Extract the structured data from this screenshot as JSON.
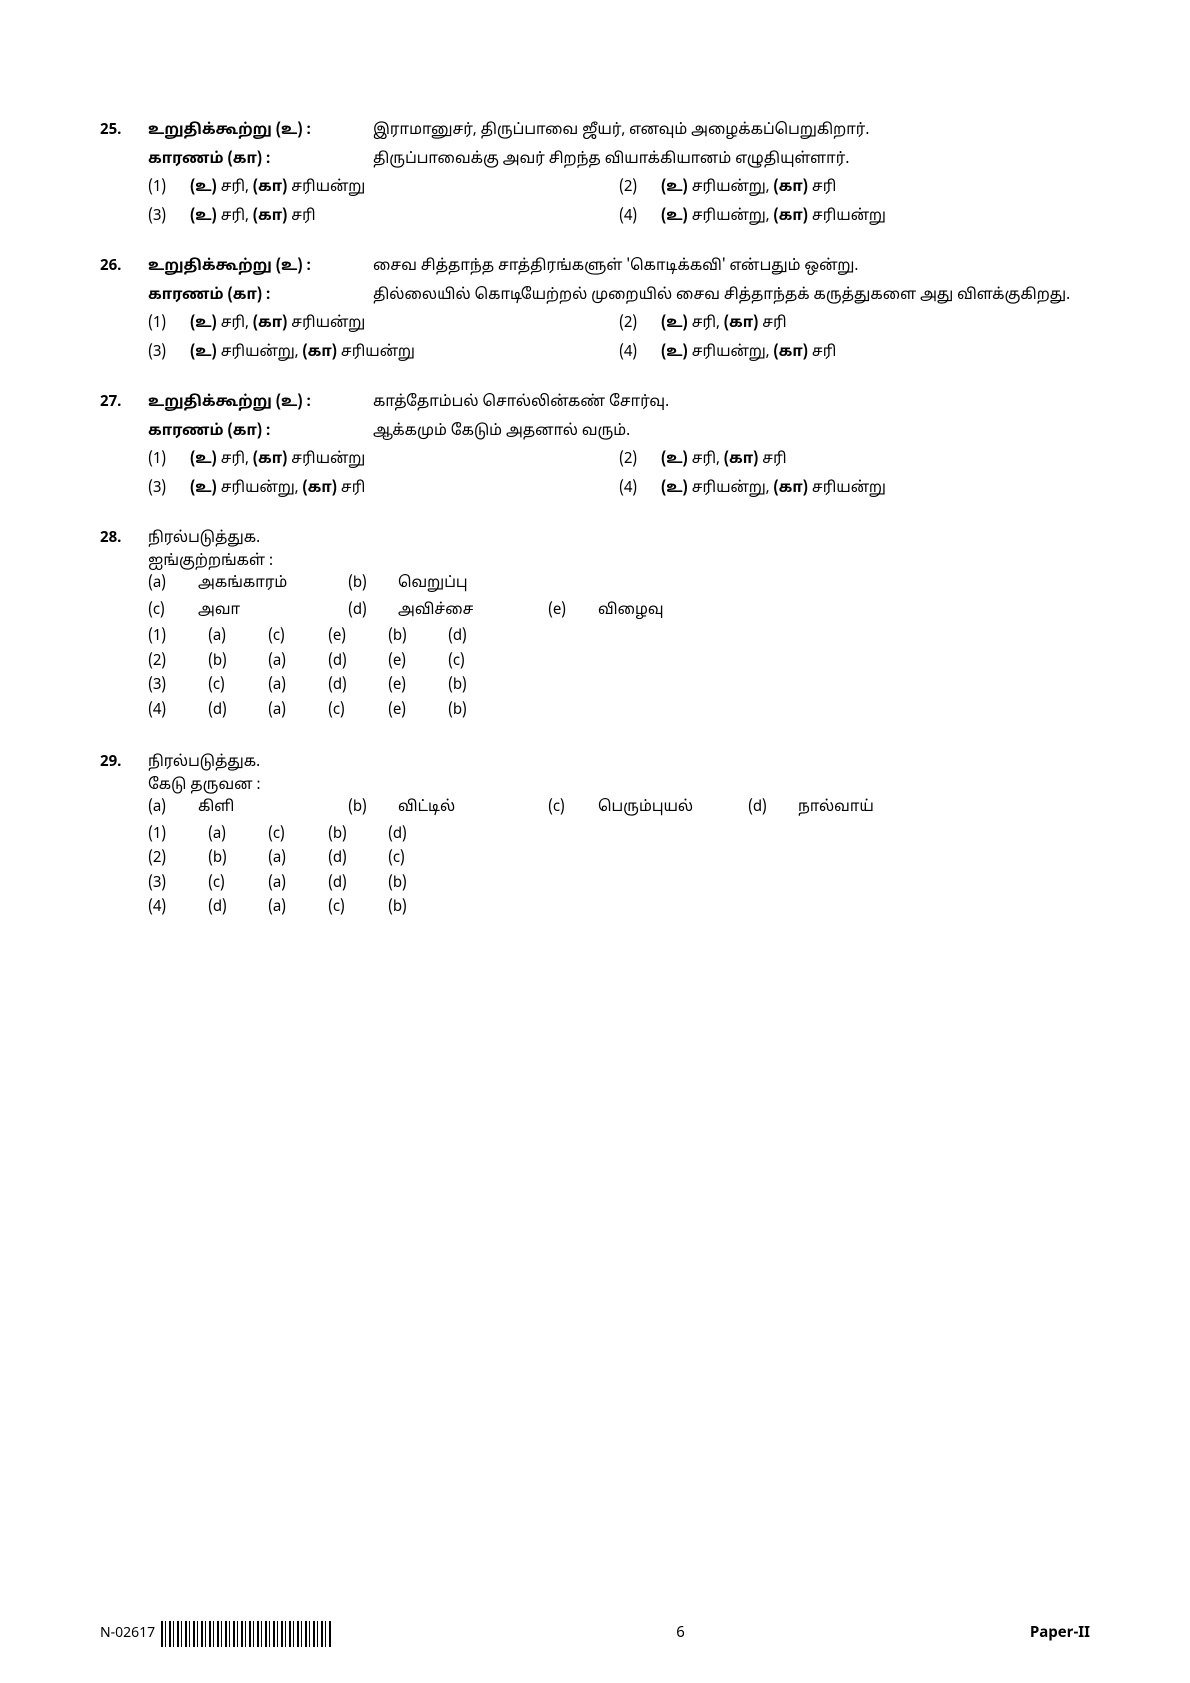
{
  "footer": {
    "doc_code": "N-02617",
    "page_number": "6",
    "paper_label": "Paper-II"
  },
  "q25": {
    "num": "25.",
    "assertion_label": "உறுதிக்கூற்று (உ) :",
    "assertion_text": "இராமானுசர், திருப்பாவை ஜீயர், எனவும் அழைக்கப்பெறுகிறார்.",
    "reason_label": "காரணம் (கா) :",
    "reason_text": "திருப்பாவைக்கு  அவர்  சிறந்த  வியாக்கியானம் எழுதியுள்ளார்.",
    "opts": {
      "n1": "(1)",
      "t1_pre": "(உ) ",
      "t1_mid": "சரி, ",
      "t1_pre2": "(கா) ",
      "t1_post": "சரியன்று",
      "n2": "(2)",
      "t2_pre": "(உ) ",
      "t2_mid": "சரியன்று, ",
      "t2_pre2": "(கா) ",
      "t2_post": "சரி",
      "n3": "(3)",
      "t3_pre": "(உ) ",
      "t3_mid": "சரி, ",
      "t3_pre2": "(கா) ",
      "t3_post": "சரி",
      "n4": "(4)",
      "t4_pre": "(உ) ",
      "t4_mid": "சரியன்று, ",
      "t4_pre2": "(கா) ",
      "t4_post": "சரியன்று"
    }
  },
  "q26": {
    "num": "26.",
    "assertion_label": "உறுதிக்கூற்று (உ) :",
    "assertion_text": "சைவ சித்தாந்த சாத்திரங்களுள் 'கொடிக்கவி' என்பதும் ஒன்று.",
    "reason_label": "காரணம் (கா) :",
    "reason_text": "தில்லையில் கொடியேற்றல் முறையில் சைவ சித்தாந்தக் கருத்துகளை அது விளக்குகிறது.",
    "opts": {
      "n1": "(1)",
      "t1_pre": "(உ) ",
      "t1_mid": "சரி, ",
      "t1_pre2": "(கா) ",
      "t1_post": "சரியன்று",
      "n2": "(2)",
      "t2_pre": "(உ) ",
      "t2_mid": "சரி, ",
      "t2_pre2": "(கா) ",
      "t2_post": "சரி",
      "n3": "(3)",
      "t3_pre": "(உ) ",
      "t3_mid": "சரியன்று, ",
      "t3_pre2": "(கா) ",
      "t3_post": "சரியன்று",
      "n4": "(4)",
      "t4_pre": "(உ) ",
      "t4_mid": "சரியன்று, ",
      "t4_pre2": "(கா) ",
      "t4_post": "சரி"
    }
  },
  "q27": {
    "num": "27.",
    "assertion_label": "உறுதிக்கூற்று (உ) :",
    "assertion_text": "காத்தோம்பல் சொல்லின்கண் சோர்வு.",
    "reason_label": "காரணம் (கா) :",
    "reason_text": "ஆக்கமும் கேடும் அதனால் வரும்.",
    "opts": {
      "n1": "(1)",
      "t1_pre": "(உ) ",
      "t1_mid": "சரி, ",
      "t1_pre2": "(கா) ",
      "t1_post": "சரியன்று",
      "n2": "(2)",
      "t2_pre": "(உ) ",
      "t2_mid": "சரி, ",
      "t2_pre2": "(கா) ",
      "t2_post": "சரி",
      "n3": "(3)",
      "t3_pre": "(உ) ",
      "t3_mid": "சரியன்று, ",
      "t3_pre2": "(கா) ",
      "t3_post": "சரி",
      "n4": "(4)",
      "t4_pre": "(உ) ",
      "t4_mid": "சரியன்று, ",
      "t4_pre2": "(கா) ",
      "t4_post": "சரியன்று"
    }
  },
  "q28": {
    "num": "28.",
    "stem1": "நிரல்படுத்துக.",
    "stem2": "ஐங்குற்றங்கள் :",
    "items": {
      "la": "(a)",
      "ta": "அகங்காரம்",
      "lb": "(b)",
      "tb": "வெறுப்பு",
      "lc": "(c)",
      "tc": "அவா",
      "ld": "(d)",
      "td": "அவிச்சை",
      "le": "(e)",
      "te": "விழைவு"
    },
    "opts": {
      "r1": {
        "n": "(1)",
        "c1": "(a)",
        "c2": "(c)",
        "c3": "(e)",
        "c4": "(b)",
        "c5": "(d)"
      },
      "r2": {
        "n": "(2)",
        "c1": "(b)",
        "c2": "(a)",
        "c3": "(d)",
        "c4": "(e)",
        "c5": "(c)"
      },
      "r3": {
        "n": "(3)",
        "c1": "(c)",
        "c2": "(a)",
        "c3": "(d)",
        "c4": "(e)",
        "c5": "(b)"
      },
      "r4": {
        "n": "(4)",
        "c1": "(d)",
        "c2": "(a)",
        "c3": "(c)",
        "c4": "(e)",
        "c5": "(b)"
      }
    }
  },
  "q29": {
    "num": "29.",
    "stem1": "நிரல்படுத்துக.",
    "stem2": "கேடு தருவன :",
    "items": {
      "la": "(a)",
      "ta": "கிளி",
      "lb": "(b)",
      "tb": "விட்டில்",
      "lc": "(c)",
      "tc": "பெரும்புயல்",
      "ld": "(d)",
      "td": "நால்வாய்"
    },
    "opts": {
      "r1": {
        "n": "(1)",
        "c1": "(a)",
        "c2": "(c)",
        "c3": "(b)",
        "c4": "(d)"
      },
      "r2": {
        "n": "(2)",
        "c1": "(b)",
        "c2": "(a)",
        "c3": "(d)",
        "c4": "(c)"
      },
      "r3": {
        "n": "(3)",
        "c1": "(c)",
        "c2": "(a)",
        "c3": "(d)",
        "c4": "(b)"
      },
      "r4": {
        "n": "(4)",
        "c1": "(d)",
        "c2": "(a)",
        "c3": "(c)",
        "c4": "(b)"
      }
    }
  }
}
